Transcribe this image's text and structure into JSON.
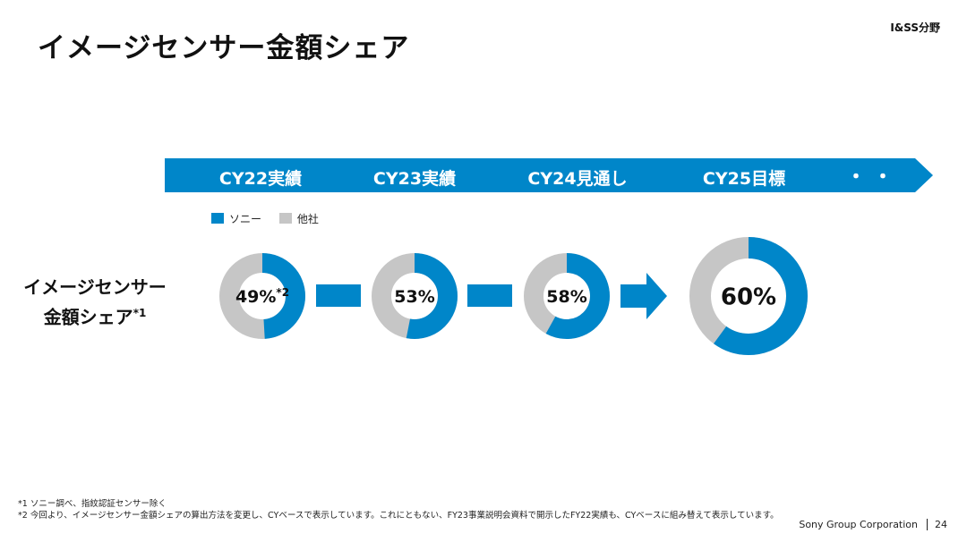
{
  "header": {
    "title": "イメージセンサー金額シェア",
    "division": "I&SS分野"
  },
  "timeline": {
    "periods": [
      "CY22実績",
      "CY23実績",
      "CY24見通し",
      "CY25目標"
    ],
    "ellipsis": "・・"
  },
  "legend": {
    "sony": "ソニー",
    "others": "他社"
  },
  "row_label": {
    "line1": "イメージセンサー",
    "line2": "金額シェア",
    "note": "*1"
  },
  "chart_data": {
    "type": "pie",
    "categories": [
      "CY22実績",
      "CY23実績",
      "CY24見通し",
      "CY25目標"
    ],
    "series": [
      {
        "name": "ソニー",
        "values": [
          49,
          53,
          58,
          60
        ]
      },
      {
        "name": "他社",
        "values": [
          51,
          47,
          42,
          40
        ]
      }
    ],
    "value_labels": [
      "49%",
      "53%",
      "58%",
      "60%"
    ],
    "first_label_note": "*2",
    "colors": {
      "sony": "#0086C9",
      "others": "#C6C6C6"
    }
  },
  "footnotes": [
    "*1 ソニー調べ、指紋認証センサー除く",
    "*2 今回より、イメージセンサー金額シェアの算出方法を変更し、CYベースで表示しています。これにともない、FY23事業説明会資料で開示したFY22実績も、CYベースに組み替えて表示しています。"
  ],
  "footer": {
    "company": "Sony Group Corporation",
    "page": "24"
  }
}
